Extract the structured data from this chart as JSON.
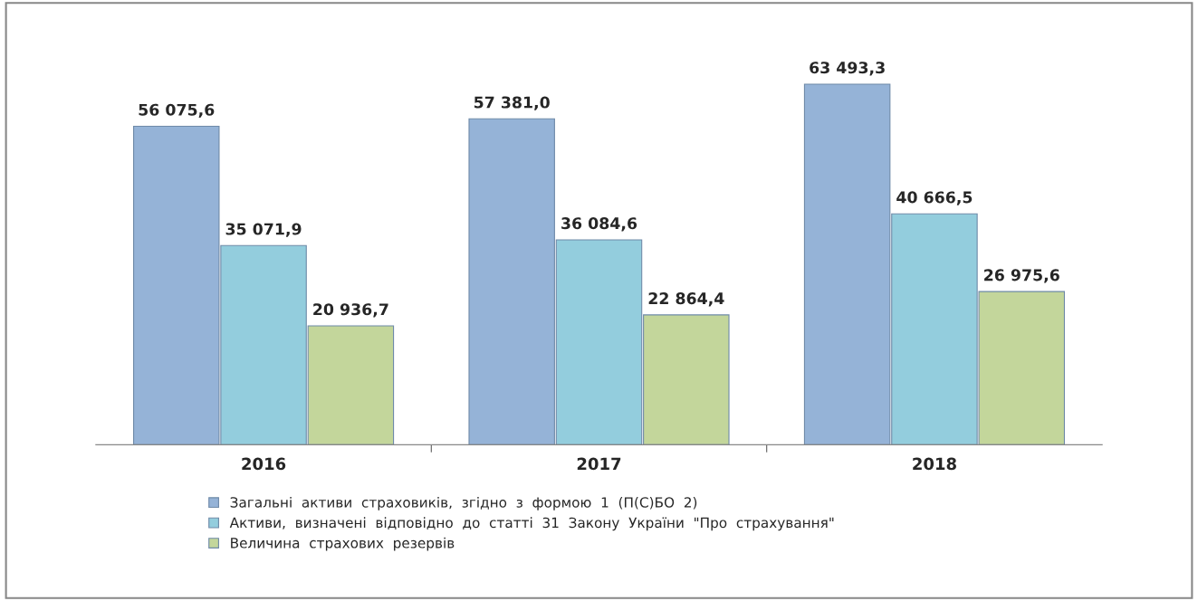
{
  "chart_data": {
    "type": "bar",
    "categories": [
      "2016",
      "2017",
      "2018"
    ],
    "series": [
      {
        "name": "Загальні  активи  страховиків,  згідно  з  формою  1  (П(С)БО  2)",
        "color": "#95b3d7",
        "values": [
          56075.6,
          57381.0,
          63493.3
        ],
        "value_labels": [
          "56 075,6",
          "57 381,0",
          "63 493,3"
        ]
      },
      {
        "name": "Активи,  визначені  відповідно  до  статті  31  Закону  України  \"Про  страхування\"",
        "color": "#93cddd",
        "values": [
          35071.9,
          36084.6,
          40666.5
        ],
        "value_labels": [
          "35 071,9",
          "36 084,6",
          "40 666,5"
        ]
      },
      {
        "name": "Величина  страхових  резервів",
        "color": "#c3d69b",
        "values": [
          20936.7,
          22864.4,
          26975.6
        ],
        "value_labels": [
          "20 936,7",
          "22 864,4",
          "26 975,6"
        ]
      }
    ],
    "legend": "bottom left",
    "grid": false
  }
}
